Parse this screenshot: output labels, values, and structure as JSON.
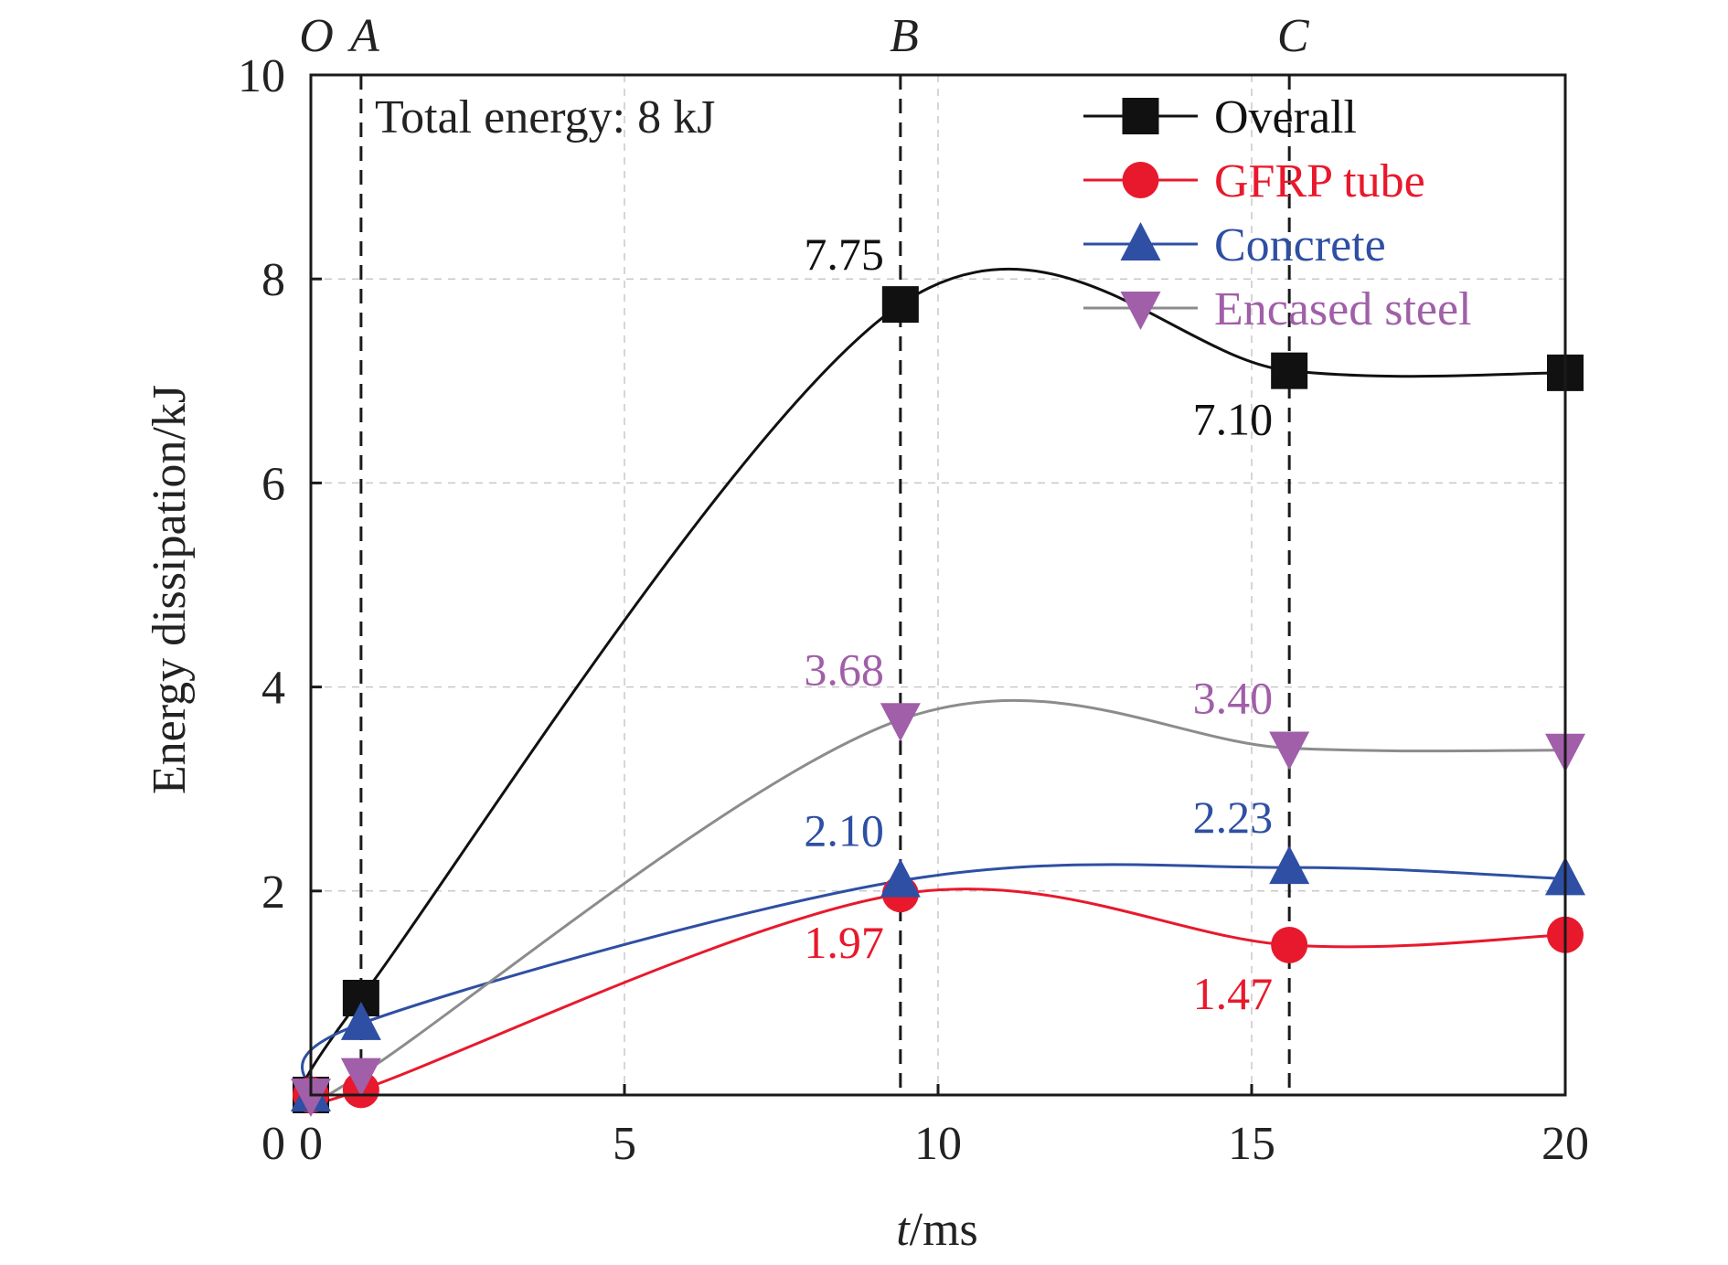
{
  "chart_data": {
    "type": "line",
    "xlabel_italic": "t",
    "xlabel_rest": "/ms",
    "ylabel": "Energy dissipation/kJ",
    "xlim": [
      0,
      20
    ],
    "ylim": [
      0,
      10
    ],
    "x_ticks": [
      0,
      5,
      10,
      15,
      20
    ],
    "y_ticks": [
      2,
      4,
      6,
      8,
      10
    ],
    "grid": true,
    "legend_position": "top-right",
    "annotation": "Total energy: 8 kJ",
    "phase_markers": [
      {
        "label": "O",
        "x": 0
      },
      {
        "label": "A",
        "x": 0.8
      },
      {
        "label": "B",
        "x": 9.4
      },
      {
        "label": "C",
        "x": 15.6
      }
    ],
    "series": [
      {
        "name": "Overall",
        "color": "#111111",
        "marker": "square",
        "x": [
          0,
          0.8,
          9.4,
          15.6,
          20
        ],
        "y": [
          0,
          0.95,
          7.75,
          7.1,
          7.08
        ],
        "labels": [
          {
            "x": 9.4,
            "y": 7.75,
            "text": "7.75",
            "pos": "above-left"
          },
          {
            "x": 15.6,
            "y": 7.1,
            "text": "7.10",
            "pos": "below-left"
          }
        ]
      },
      {
        "name": "GFRP tube",
        "color": "#e8192c",
        "marker": "circle",
        "x": [
          0,
          0.8,
          9.4,
          15.6,
          20
        ],
        "y": [
          0,
          0.05,
          1.97,
          1.47,
          1.57
        ],
        "labels": [
          {
            "x": 9.4,
            "y": 1.97,
            "text": "1.97",
            "pos": "below-left"
          },
          {
            "x": 15.6,
            "y": 1.47,
            "text": "1.47",
            "pos": "below-left"
          }
        ]
      },
      {
        "name": "Concrete",
        "color": "#2e4fa3",
        "marker": "triangle-up",
        "x": [
          0,
          0.8,
          9.4,
          15.6,
          20
        ],
        "y": [
          0,
          0.7,
          2.1,
          2.23,
          2.12
        ],
        "labels": [
          {
            "x": 9.4,
            "y": 2.1,
            "text": "2.10",
            "pos": "above-left"
          },
          {
            "x": 15.6,
            "y": 2.23,
            "text": "2.23",
            "pos": "above-left"
          }
        ]
      },
      {
        "name": "Encased steel",
        "color": "#a05fa8",
        "line_color": "#8c8c8c",
        "marker": "triangle-down",
        "x": [
          0,
          0.8,
          9.4,
          15.6,
          20
        ],
        "y": [
          0,
          0.2,
          3.68,
          3.4,
          3.38
        ],
        "labels": [
          {
            "x": 9.4,
            "y": 3.68,
            "text": "3.68",
            "pos": "above-left"
          },
          {
            "x": 15.6,
            "y": 3.4,
            "text": "3.40",
            "pos": "above-left"
          }
        ]
      }
    ]
  }
}
